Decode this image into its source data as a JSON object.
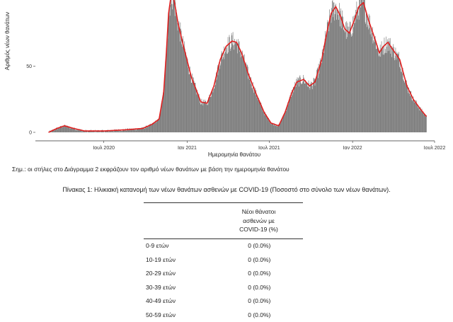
{
  "chart_data": {
    "type": "bar",
    "title": "",
    "xlabel": "Ημερομηνία θανάτου",
    "ylabel": "Αριθμός νέων θανάτων",
    "ylim": [
      0,
      100
    ],
    "y_ticks": [
      "0",
      "50"
    ],
    "x_ticks": [
      "Ιουλ 2020",
      "Ιαν 2021",
      "Ιουλ 2021",
      "Ιαν 2022",
      "Ιουλ 2022"
    ],
    "x_tick_dates": [
      "2020-07-01",
      "2021-01-01",
      "2021-07-01",
      "2022-01-01",
      "2022-07-01"
    ],
    "x_range": [
      "2020-02-01",
      "2022-07-01"
    ],
    "bar_color": "#707070",
    "line_color": "#e02020",
    "series": [
      {
        "name": "",
        "values": []
      }
    ],
    "anchors": [
      [
        "2020-03-01",
        0
      ],
      [
        "2020-03-20",
        3
      ],
      [
        "2020-04-05",
        5
      ],
      [
        "2020-04-25",
        3
      ],
      [
        "2020-05-20",
        1
      ],
      [
        "2020-07-01",
        1
      ],
      [
        "2020-08-20",
        2
      ],
      [
        "2020-09-25",
        3
      ],
      [
        "2020-10-15",
        6
      ],
      [
        "2020-10-31",
        10
      ],
      [
        "2020-11-10",
        30
      ],
      [
        "2020-11-16",
        60
      ],
      [
        "2020-11-21",
        90
      ],
      [
        "2020-11-27",
        105
      ],
      [
        "2020-12-03",
        100
      ],
      [
        "2020-12-12",
        82
      ],
      [
        "2020-12-24",
        65
      ],
      [
        "2021-01-10",
        42
      ],
      [
        "2021-01-31",
        23
      ],
      [
        "2021-02-14",
        22
      ],
      [
        "2021-03-01",
        35
      ],
      [
        "2021-03-15",
        55
      ],
      [
        "2021-03-28",
        65
      ],
      [
        "2021-04-10",
        69
      ],
      [
        "2021-04-20",
        68
      ],
      [
        "2021-05-01",
        60
      ],
      [
        "2021-05-15",
        45
      ],
      [
        "2021-06-01",
        30
      ],
      [
        "2021-06-20",
        15
      ],
      [
        "2021-07-05",
        7
      ],
      [
        "2021-07-22",
        5
      ],
      [
        "2021-08-05",
        15
      ],
      [
        "2021-08-20",
        30
      ],
      [
        "2021-08-31",
        38
      ],
      [
        "2021-09-15",
        40
      ],
      [
        "2021-09-28",
        35
      ],
      [
        "2021-10-10",
        38
      ],
      [
        "2021-10-25",
        55
      ],
      [
        "2021-11-05",
        75
      ],
      [
        "2021-11-15",
        90
      ],
      [
        "2021-11-25",
        95
      ],
      [
        "2021-12-05",
        88
      ],
      [
        "2021-12-15",
        78
      ],
      [
        "2021-12-25",
        75
      ],
      [
        "2022-01-05",
        85
      ],
      [
        "2022-01-15",
        95
      ],
      [
        "2022-01-25",
        98
      ],
      [
        "2022-02-05",
        85
      ],
      [
        "2022-02-20",
        70
      ],
      [
        "2022-03-01",
        60
      ],
      [
        "2022-03-10",
        65
      ],
      [
        "2022-03-20",
        68
      ],
      [
        "2022-04-01",
        62
      ],
      [
        "2022-04-15",
        55
      ],
      [
        "2022-05-01",
        35
      ],
      [
        "2022-05-15",
        25
      ],
      [
        "2022-06-01",
        17
      ],
      [
        "2022-06-13",
        12
      ]
    ]
  },
  "note": "Σημ.: οι στήλες στο Διάγραμμα 2 εκφράζουν τον αριθμό νέων θανάτων με βάση την ημερομηνία θανάτου",
  "table": {
    "caption": "Πίνακας 1: Ηλικιακή κατανομή των νέων θανάτων ασθενών με COVID-19 (Ποσοστό στο σύνολο των νέων θανάτων).",
    "header": "Νέοι θάνατοι\nασθενών με\nCOVID-19 (%)",
    "rows": [
      {
        "age": "0-9 ετών",
        "value": "0 (0.0%)"
      },
      {
        "age": "10-19 ετών",
        "value": "0 (0.0%)"
      },
      {
        "age": "20-29 ετών",
        "value": "0 (0.0%)"
      },
      {
        "age": "30-39 ετών",
        "value": "0 (0.0%)"
      },
      {
        "age": "40-49 ετών",
        "value": "0 (0.0%)"
      },
      {
        "age": "50-59 ετών",
        "value": "0 (0.0%)"
      }
    ]
  }
}
